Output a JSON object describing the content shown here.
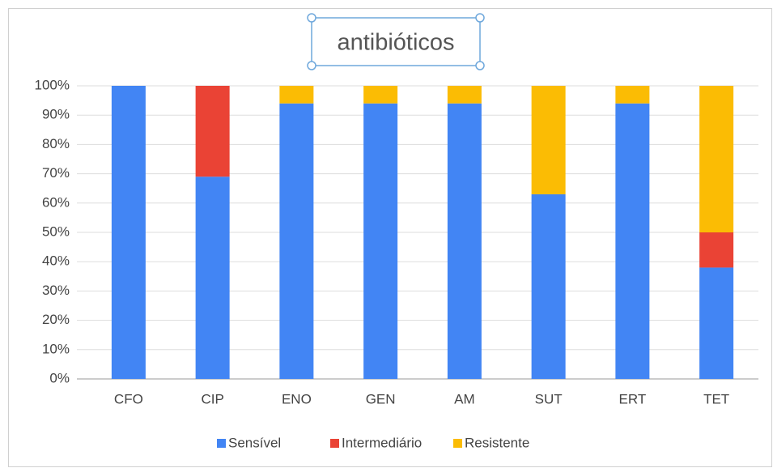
{
  "chart_data": {
    "type": "stacked_bar",
    "title": "antibióticos",
    "categories": [
      "CFO",
      "CIP",
      "ENO",
      "GEN",
      "AM",
      "SUT",
      "ERT",
      "TET"
    ],
    "series": [
      {
        "name": "Sensível",
        "color": "#4285f4",
        "values": [
          100,
          69,
          94,
          94,
          94,
          63,
          94,
          38
        ]
      },
      {
        "name": "Intermediário",
        "color": "#ea4335",
        "values": [
          0,
          31,
          0,
          0,
          0,
          0,
          0,
          12
        ]
      },
      {
        "name": "Resistente",
        "color": "#fbbc04",
        "values": [
          0,
          0,
          6,
          6,
          6,
          37,
          6,
          50
        ]
      }
    ],
    "ylim": [
      0,
      100
    ],
    "yticks": [
      {
        "value": 0,
        "label": "0%"
      },
      {
        "value": 10,
        "label": "10%"
      },
      {
        "value": 20,
        "label": "20%"
      },
      {
        "value": 30,
        "label": "30%"
      },
      {
        "value": 40,
        "label": "40%"
      },
      {
        "value": 50,
        "label": "50%"
      },
      {
        "value": 60,
        "label": "60%"
      },
      {
        "value": 70,
        "label": "70%"
      },
      {
        "value": 80,
        "label": "80%"
      },
      {
        "value": 90,
        "label": "90%"
      },
      {
        "value": 100,
        "label": "100%"
      }
    ],
    "grid": true,
    "legend": "bottom"
  }
}
